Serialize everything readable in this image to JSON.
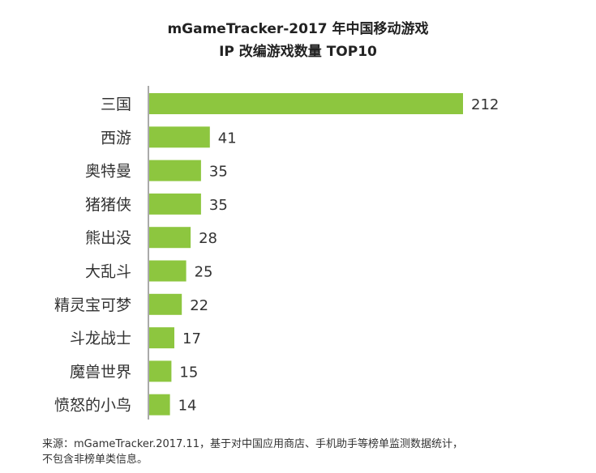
{
  "title": {
    "line1": "mGameTracker-2017 年中国移动游戏",
    "line2": "IP 改编游戏数量 TOP10"
  },
  "chart_data": {
    "type": "bar",
    "orientation": "horizontal",
    "title": "mGameTracker-2017 年中国移动游戏 IP 改编游戏数量 TOP10",
    "categories": [
      "三国",
      "西游",
      "奥特曼",
      "猪猪侠",
      "熊出没",
      "大乱斗",
      "精灵宝可梦",
      "斗龙战士",
      "魔兽世界",
      "愤怒的小鸟"
    ],
    "values": [
      212,
      41,
      35,
      35,
      28,
      25,
      22,
      17,
      15,
      14
    ],
    "xlabel": "",
    "ylabel": "",
    "xlim": [
      0,
      212
    ],
    "grid": false,
    "legend": "none",
    "bar_color": "#8dc63f"
  },
  "footer": {
    "line1": "来源：mGameTracker.2017.11，基于对中国应用商店、手机助手等榜单监测数据统计，",
    "line2": "不包含非榜单类信息。"
  }
}
